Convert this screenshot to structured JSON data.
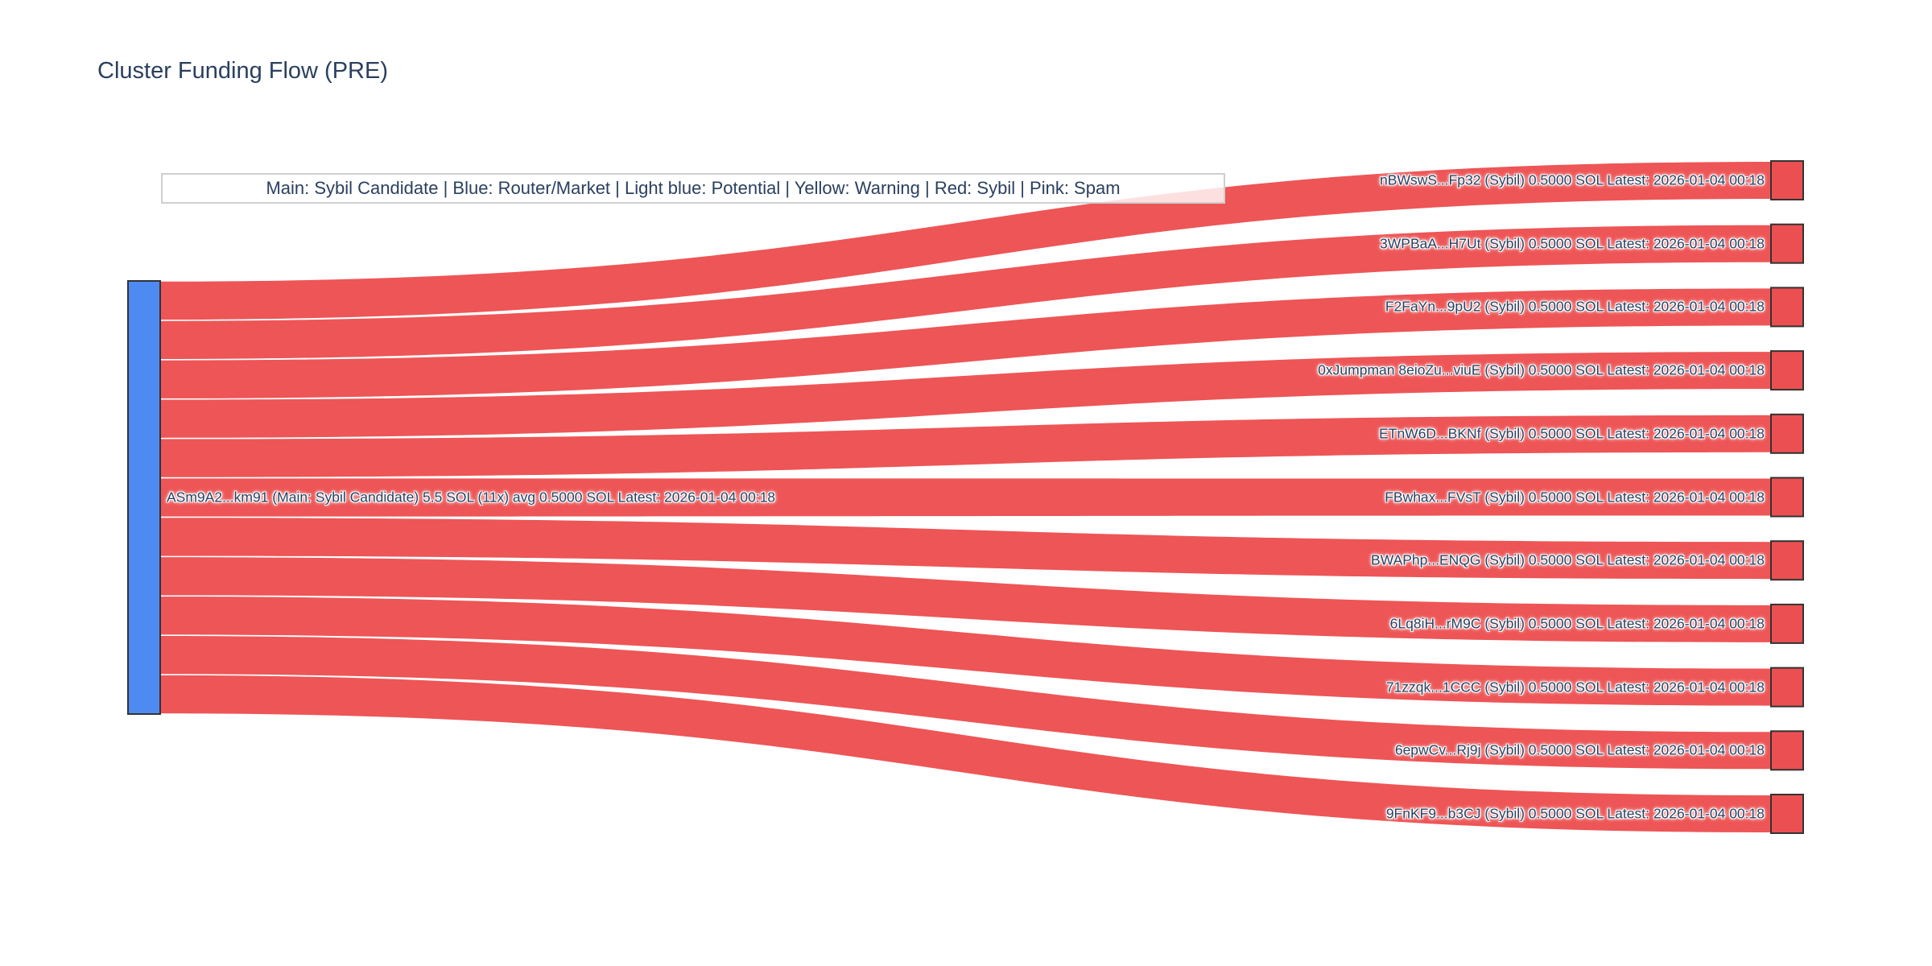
{
  "chart_data": {
    "type": "sankey",
    "title": "Cluster Funding Flow (PRE)",
    "legend": "Main: Sybil Candidate  |  Blue: Router/Market | Light blue: Potential | Yellow: Warning | Red: Sybil | Pink: Spam",
    "unit": "SOL",
    "source": {
      "label": "ASm9A2...km91 (Main: Sybil Candidate) 5.5 SOL (11x) avg 0.5000 SOL Latest: 2026-01-04 00:18",
      "address": "ASm9A2...km91",
      "category": "Main: Sybil Candidate",
      "total_sol": 5.5,
      "tx_count": 11,
      "avg_sol": "0.5000",
      "latest": "2026-01-04 00:18"
    },
    "targets": [
      {
        "address": "nBWswS...Fp32",
        "category": "Sybil",
        "value_sol": "0.5000",
        "latest": "2026-01-04 00:18",
        "label": "nBWswS...Fp32 (Sybil) 0.5000 SOL Latest: 2026-01-04 00:18"
      },
      {
        "address": "3WPBaA...H7Ut",
        "category": "Sybil",
        "value_sol": "0.5000",
        "latest": "2026-01-04 00:18",
        "label": "3WPBaA...H7Ut (Sybil) 0.5000 SOL Latest: 2026-01-04 00:18"
      },
      {
        "address": "F2FaYn...9pU2",
        "category": "Sybil",
        "value_sol": "0.5000",
        "latest": "2026-01-04 00:18",
        "label": "F2FaYn...9pU2 (Sybil) 0.5000 SOL Latest: 2026-01-04 00:18"
      },
      {
        "address": "0xJumpman 8eioZu...viuE",
        "category": "Sybil",
        "value_sol": "0.5000",
        "latest": "2026-01-04 00:18",
        "label": "0xJumpman 8eioZu...viuE (Sybil) 0.5000 SOL Latest: 2026-01-04 00:18"
      },
      {
        "address": "ETnW6D...BKNf",
        "category": "Sybil",
        "value_sol": "0.5000",
        "latest": "2026-01-04 00:18",
        "label": "ETnW6D...BKNf (Sybil) 0.5000 SOL Latest: 2026-01-04 00:18"
      },
      {
        "address": "FBwhax...FVsT",
        "category": "Sybil",
        "value_sol": "0.5000",
        "latest": "2026-01-04 00:18",
        "label": "FBwhax...FVsT (Sybil) 0.5000 SOL Latest: 2026-01-04 00:18"
      },
      {
        "address": "BWAPhp...ENQG",
        "category": "Sybil",
        "value_sol": "0.5000",
        "latest": "2026-01-04 00:18",
        "label": "BWAPhp...ENQG (Sybil) 0.5000 SOL Latest: 2026-01-04 00:18"
      },
      {
        "address": "6Lq8iH...rM9C",
        "category": "Sybil",
        "value_sol": "0.5000",
        "latest": "2026-01-04 00:18",
        "label": "6Lq8iH...rM9C (Sybil) 0.5000 SOL Latest: 2026-01-04 00:18"
      },
      {
        "address": "71zzqk...1CCC",
        "category": "Sybil",
        "value_sol": "0.5000",
        "latest": "2026-01-04 00:18",
        "label": "71zzqk...1CCC (Sybil) 0.5000 SOL Latest: 2026-01-04 00:18"
      },
      {
        "address": "6epwCv...Rj9j",
        "category": "Sybil",
        "value_sol": "0.5000",
        "latest": "2026-01-04 00:18",
        "label": "6epwCv...Rj9j (Sybil) 0.5000 SOL Latest: 2026-01-04 00:18"
      },
      {
        "address": "9FnKF9...b3CJ",
        "category": "Sybil",
        "value_sol": "0.5000",
        "latest": "2026-01-04 00:18",
        "label": "9FnKF9...b3CJ (Sybil) 0.5000 SOL Latest: 2026-01-04 00:18"
      }
    ],
    "link_value_sol": 0.5,
    "colors": {
      "source_node": "#4d8bf3",
      "target_node": "#ec4f51",
      "link": "#ee5556",
      "node_border": "#333333",
      "text": "#2a3f5f",
      "legend_border": "#cfcfcf"
    }
  }
}
